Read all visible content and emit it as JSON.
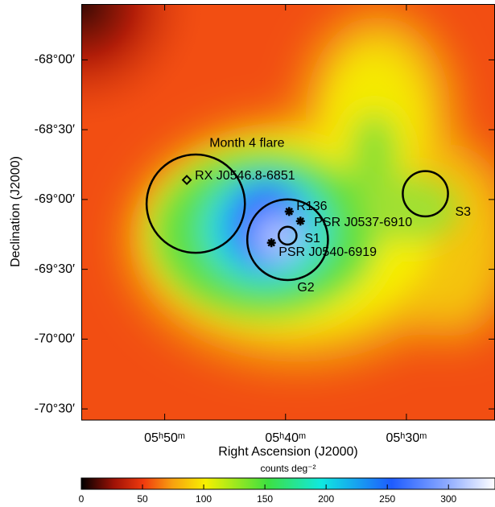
{
  "chart_data": {
    "type": "skymap",
    "xlabel": "Right Ascension (J2000)",
    "ylabel": "Declination (J2000)",
    "xlim": [
      56.9,
      22.67
    ],
    "xticks": [
      {
        "value": 50,
        "label": "05ʰ50ᵐ"
      },
      {
        "value": 40,
        "label": "05ʰ40ᵐ"
      },
      {
        "value": 30,
        "label": "05ʰ30ᵐ"
      }
    ],
    "ylim": [
      -70.58,
      -67.6
    ],
    "yticks": [
      {
        "value": -68,
        "label": "-68°00′"
      },
      {
        "value": -68.5,
        "label": "-68°30′"
      },
      {
        "value": -69,
        "label": "-69°00′"
      },
      {
        "value": -69.5,
        "label": "-69°30′"
      },
      {
        "value": -70,
        "label": "-70°00′"
      },
      {
        "value": -70.5,
        "label": "-70°30′"
      }
    ],
    "colorbar": {
      "label": "counts deg⁻²",
      "lim": [
        0,
        338
      ],
      "ticks": [
        0,
        50,
        100,
        150,
        200,
        250,
        300
      ]
    },
    "regions": [
      {
        "name": "Month 4 flare",
        "x": 47.43,
        "y": -69.03,
        "radius": 0.352
      },
      {
        "name": "G2",
        "x": 39.83,
        "y": -69.288,
        "radius": 0.289
      },
      {
        "name": "S1",
        "x": 39.83,
        "y": -69.259,
        "radius": 0.064
      },
      {
        "name": "S3",
        "x": 28.43,
        "y": -68.959,
        "radius": 0.162
      }
    ],
    "sources": [
      {
        "name": "RX J0546.8-6851",
        "x": 48.17,
        "y": -68.86,
        "marker": "diamond"
      },
      {
        "name": "R136",
        "x": 39.7,
        "y": -69.086,
        "marker": "star"
      },
      {
        "name": "PSR J0537-6910",
        "x": 38.77,
        "y": -69.155,
        "marker": "star"
      },
      {
        "name": "PSR J0540-6919",
        "x": 41.17,
        "y": -69.31,
        "marker": "star"
      }
    ]
  }
}
